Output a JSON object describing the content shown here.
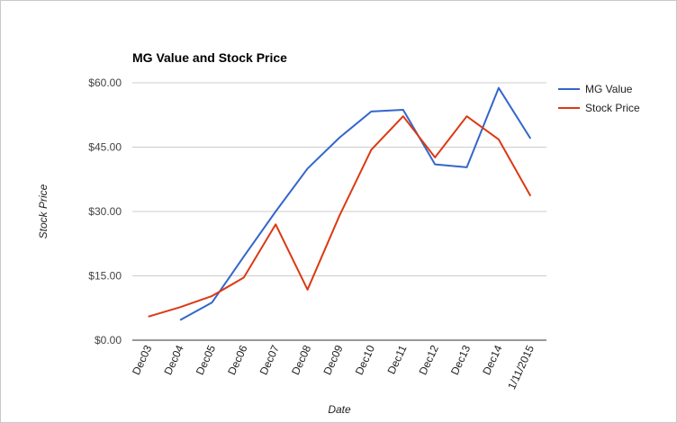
{
  "chart_data": {
    "type": "line",
    "title": "MG Value and Stock Price",
    "xlabel": "Date",
    "ylabel": "Stock Price",
    "categories": [
      "Dec03",
      "Dec04",
      "Dec05",
      "Dec06",
      "Dec07",
      "Dec08",
      "Dec09",
      "Dec10",
      "Dec11",
      "Dec12",
      "Dec13",
      "Dec14",
      "1/11/2015"
    ],
    "ylim": [
      0,
      60
    ],
    "yticks": [
      "$0.00",
      "$15.00",
      "$30.00",
      "$45.00",
      "$60.00"
    ],
    "ytick_values": [
      0,
      15,
      30,
      45,
      60
    ],
    "grid": true,
    "legend_position": "right",
    "series": [
      {
        "name": "MG Value",
        "color": "#3366cc",
        "values": [
          null,
          4.7,
          8.8,
          19.5,
          30.0,
          40.0,
          47.2,
          53.3,
          53.7,
          41.0,
          40.3,
          58.8,
          47.0
        ]
      },
      {
        "name": "Stock Price",
        "color": "#dc3912",
        "values": [
          5.5,
          7.7,
          10.3,
          14.6,
          27.0,
          11.8,
          29.0,
          44.4,
          52.2,
          42.6,
          52.2,
          46.8,
          33.6
        ]
      }
    ]
  }
}
